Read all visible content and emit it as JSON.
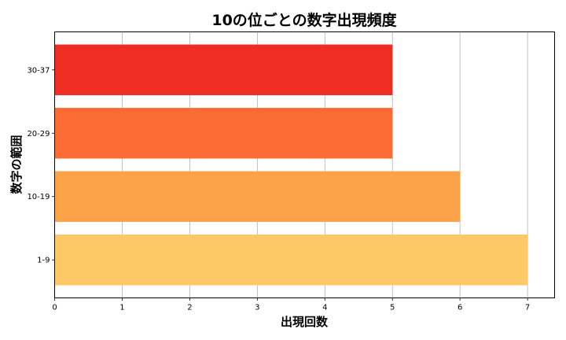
{
  "chart_data": {
    "type": "bar",
    "orientation": "horizontal",
    "title": "10の位ごとの数字出現頻度",
    "xlabel": "出現回数",
    "ylabel": "数字の範囲",
    "categories": [
      "1-9",
      "10-19",
      "20-29",
      "30-37"
    ],
    "values": [
      7,
      6,
      5,
      5
    ],
    "colors": [
      "#fdc966",
      "#fca249",
      "#fc6b33",
      "#ee2d23"
    ],
    "xlim": [
      0,
      7.4
    ],
    "xticks": [
      0,
      1,
      2,
      3,
      4,
      5,
      6,
      7
    ],
    "grid": "x"
  }
}
